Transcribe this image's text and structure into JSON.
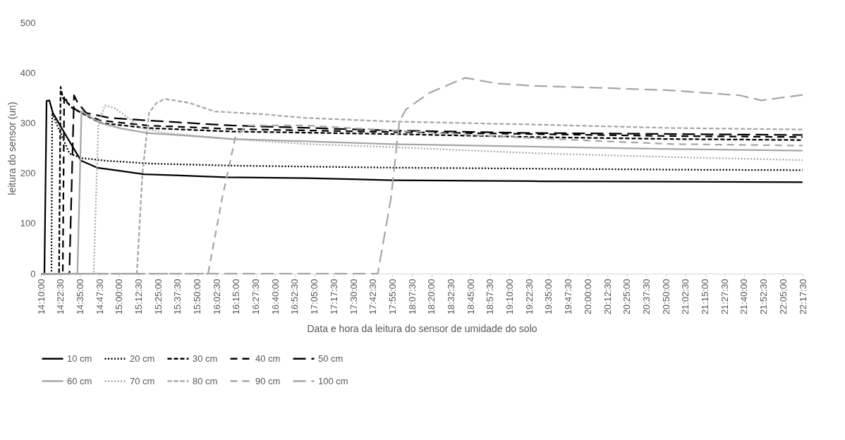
{
  "chart_data": {
    "type": "line",
    "xlabel": "Data e hora da leitura do sensor de umidade do solo",
    "ylabel": "leitura do sensor (un)",
    "xlim": [
      14.16667,
      22.29167
    ],
    "ylim": [
      0,
      500
    ],
    "yticks": [
      0,
      100,
      200,
      300,
      400,
      500
    ],
    "xticks": [
      {
        "value": 14.16667,
        "label": "14:10:00"
      },
      {
        "value": 14.375,
        "label": "14:22:30"
      },
      {
        "value": 14.58333,
        "label": "14:35:00"
      },
      {
        "value": 14.79167,
        "label": "14:47:30"
      },
      {
        "value": 15,
        "label": "15:00:00"
      },
      {
        "value": 15.20833,
        "label": "15:12:30"
      },
      {
        "value": 15.41667,
        "label": "15:25:00"
      },
      {
        "value": 15.625,
        "label": "15:37:30"
      },
      {
        "value": 15.83333,
        "label": "15:50:00"
      },
      {
        "value": 16.04167,
        "label": "16:02:30"
      },
      {
        "value": 16.25,
        "label": "16:15:00"
      },
      {
        "value": 16.45833,
        "label": "16:27:30"
      },
      {
        "value": 16.66667,
        "label": "16:40:00"
      },
      {
        "value": 16.875,
        "label": "16:52:30"
      },
      {
        "value": 17.08333,
        "label": "17:05:00"
      },
      {
        "value": 17.29167,
        "label": "17:17:30"
      },
      {
        "value": 17.5,
        "label": "17:30:00"
      },
      {
        "value": 17.70833,
        "label": "17:42:30"
      },
      {
        "value": 17.91667,
        "label": "17:55:00"
      },
      {
        "value": 18.125,
        "label": "18:07:30"
      },
      {
        "value": 18.33333,
        "label": "18:20:00"
      },
      {
        "value": 18.54167,
        "label": "18:32:30"
      },
      {
        "value": 18.75,
        "label": "18:45:00"
      },
      {
        "value": 18.95833,
        "label": "18:57:30"
      },
      {
        "value": 19.16667,
        "label": "19:10:00"
      },
      {
        "value": 19.375,
        "label": "19:22:30"
      },
      {
        "value": 19.58333,
        "label": "19:35:00"
      },
      {
        "value": 19.79167,
        "label": "19:47:30"
      },
      {
        "value": 20,
        "label": "20:00:00"
      },
      {
        "value": 20.20833,
        "label": "20:12:30"
      },
      {
        "value": 20.41667,
        "label": "20:25:00"
      },
      {
        "value": 20.625,
        "label": "20:37:30"
      },
      {
        "value": 20.83333,
        "label": "20:50:00"
      },
      {
        "value": 21.04167,
        "label": "21:02:30"
      },
      {
        "value": 21.25,
        "label": "21:15:00"
      },
      {
        "value": 21.45833,
        "label": "21:27:30"
      },
      {
        "value": 21.66667,
        "label": "21:40:00"
      },
      {
        "value": 21.875,
        "label": "21:52:30"
      },
      {
        "value": 22.08333,
        "label": "22:05:00"
      },
      {
        "value": 22.29167,
        "label": "22:17:30"
      }
    ],
    "grid": false,
    "legend": "bottom",
    "marker": "none",
    "series": [
      {
        "name": "10 cm",
        "color": "#000000",
        "line_style": "solid",
        "x": [
          14.167,
          14.204,
          14.227,
          14.257,
          14.294,
          14.45,
          14.594,
          14.766,
          15.0,
          15.268,
          15.7,
          16.138,
          17.0,
          17.914,
          19.412,
          20.911,
          22.29
        ],
        "values": [
          0,
          0,
          344,
          345,
          320,
          270,
          225,
          211,
          205,
          198,
          195,
          192,
          190,
          186,
          184,
          183,
          182
        ]
      },
      {
        "name": "20 cm",
        "color": "#000000",
        "line_style": "dotted",
        "x": [
          14.167,
          14.279,
          14.287,
          14.33,
          14.472,
          14.6,
          14.846,
          15.349,
          16.22,
          17.914,
          19.412,
          20.911,
          22.29
        ],
        "values": [
          0,
          0,
          320,
          300,
          239,
          230,
          225,
          219,
          215,
          211,
          209,
          207,
          206
        ]
      },
      {
        "name": "30 cm",
        "color": "#000000",
        "line_style": "dashed",
        "x": [
          14.167,
          14.36,
          14.377,
          14.4,
          14.5,
          14.8,
          15.3,
          16.2,
          17.9,
          19.4,
          20.9,
          22.29
        ],
        "values": [
          0,
          0,
          372,
          350,
          330,
          300,
          290,
          283,
          278,
          272,
          268,
          266
        ]
      },
      {
        "name": "40 cm",
        "color": "#000000",
        "line_style": "dashed",
        "x": [
          14.167,
          14.4,
          14.415,
          14.45,
          14.55,
          14.8,
          15.3,
          16.2,
          17.9,
          19.4,
          20.9,
          22.29
        ],
        "values": [
          0,
          0,
          355,
          340,
          325,
          305,
          295,
          288,
          282,
          278,
          274,
          272
        ]
      },
      {
        "name": "50 cm",
        "color": "#000000",
        "line_style": "dashed",
        "x": [
          14.167,
          14.47,
          14.52,
          14.56,
          14.65,
          14.9,
          15.3,
          16.2,
          17.9,
          19.4,
          20.9,
          22.29
        ],
        "values": [
          0,
          0,
          355,
          340,
          320,
          310,
          305,
          295,
          285,
          280,
          278,
          276
        ]
      },
      {
        "name": "60 cm",
        "color": "#a6a6a6",
        "line_style": "solid",
        "x": [
          14.167,
          14.556,
          14.6,
          14.8,
          15.0,
          15.3,
          15.7,
          16.2,
          17.9,
          19.4,
          20.9,
          22.29
        ],
        "values": [
          0,
          0,
          323,
          300,
          290,
          280,
          275,
          268,
          258,
          253,
          248,
          245
        ]
      },
      {
        "name": "70 cm",
        "color": "#a6a6a6",
        "line_style": "dotted",
        "x": [
          14.167,
          14.729,
          14.78,
          14.85,
          14.95,
          15.1,
          15.238,
          15.5,
          16.2,
          17.0,
          17.9,
          19.4,
          20.9,
          22.29
        ],
        "values": [
          0,
          0,
          300,
          335,
          330,
          310,
          290,
          280,
          268,
          258,
          252,
          240,
          232,
          226
        ]
      },
      {
        "name": "80 cm",
        "color": "#a6a6a6",
        "line_style": "dashed",
        "x": [
          14.167,
          15.19,
          15.25,
          15.32,
          15.4,
          15.49,
          15.75,
          16.02,
          16.5,
          17.0,
          17.9,
          19.4,
          20.9,
          22.29
        ],
        "values": [
          0,
          0,
          200,
          320,
          340,
          348,
          340,
          323,
          318,
          310,
          303,
          297,
          290,
          287
        ]
      },
      {
        "name": "90 cm",
        "color": "#a6a6a6",
        "line_style": "dashed",
        "x": [
          14.167,
          15.95,
          16.1,
          16.24,
          16.36,
          17.0,
          17.9,
          19.4,
          20.9,
          22.29
        ],
        "values": [
          0,
          0,
          150,
          271,
          295,
          295,
          285,
          270,
          258,
          255
        ]
      },
      {
        "name": "100 cm",
        "color": "#a6a6a6",
        "line_style": "dashed",
        "x": [
          14.167,
          17.76,
          17.9,
          17.99,
          18.06,
          18.31,
          18.69,
          19.02,
          19.41,
          20.14,
          20.88,
          21.62,
          21.85,
          22.29
        ],
        "values": [
          0,
          0,
          150,
          303,
          327,
          360,
          390,
          379,
          374,
          370,
          365,
          355,
          345,
          356
        ]
      }
    ]
  }
}
